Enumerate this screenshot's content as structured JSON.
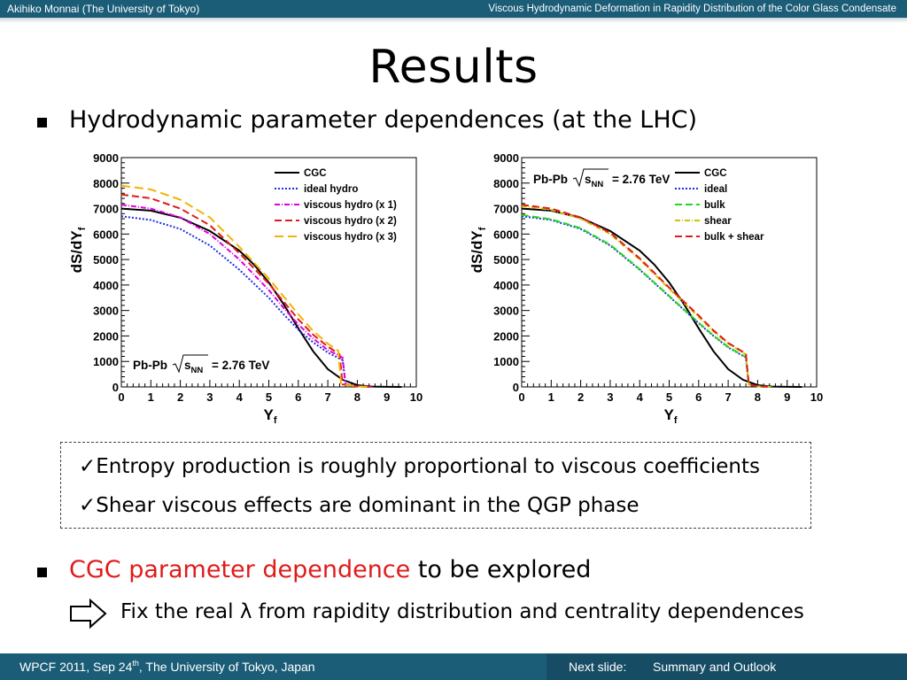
{
  "header": {
    "author": "Akihiko Monnai (The University of Tokyo)",
    "talk_title": "Viscous Hydrodynamic Deformation in Rapidity Distribution of the Color Glass Condensate"
  },
  "slide": {
    "title": "Results",
    "bullet1": "Hydrodynamic parameter dependences (at the LHC)",
    "conclusions": [
      "✓Entropy production is roughly proportional to viscous coefficients",
      "✓Shear viscous effects are dominant in the QGP phase"
    ],
    "bullet2_red": "CGC parameter dependence",
    "bullet2_rest": " to be explored",
    "sub_item": "Fix the real λ from rapidity distribution and centrality dependences"
  },
  "footer": {
    "conference_prefix": "WPCF 2011, Sep 24",
    "conference_sup": "th",
    "conference_suffix": ", The University of Tokyo, Japan",
    "next_label": "Next slide:",
    "next_value": "Summary and Outlook"
  },
  "chart_data": [
    {
      "type": "line",
      "ylabel": "dS/dY",
      "ylabel_sub": "f",
      "xlabel": "Y",
      "xlabel_sub": "f",
      "xlim": [
        0,
        10
      ],
      "ylim": [
        0,
        9000
      ],
      "xticks": [
        "0",
        "1",
        "2",
        "3",
        "4",
        "5",
        "6",
        "7",
        "8",
        "9",
        "10"
      ],
      "yticks": [
        "0",
        "1000",
        "2000",
        "3000",
        "4000",
        "5000",
        "6000",
        "7000",
        "8000",
        "9000"
      ],
      "annotation": {
        "pre": "Pb-Pb",
        "sym": "s",
        "sub": "NN",
        "post": "= 2.76 TeV"
      },
      "annotation_position": "bottom-left",
      "legend_position": "top-right",
      "series": [
        {
          "name": "CGC",
          "color": "#000000",
          "dash": "",
          "points": [
            [
              0,
              7000
            ],
            [
              1,
              6920
            ],
            [
              2,
              6640
            ],
            [
              3,
              6120
            ],
            [
              4,
              5350
            ],
            [
              4.5,
              4800
            ],
            [
              5,
              4100
            ],
            [
              5.5,
              3250
            ],
            [
              6,
              2300
            ],
            [
              6.5,
              1400
            ],
            [
              7,
              700
            ],
            [
              7.5,
              280
            ],
            [
              8,
              70
            ],
            [
              8.5,
              15
            ],
            [
              9,
              5
            ],
            [
              9.5,
              0
            ]
          ]
        },
        {
          "name": "ideal hydro",
          "color": "#1f2de0",
          "dash": "2,2",
          "points": [
            [
              0,
              6700
            ],
            [
              1,
              6550
            ],
            [
              2,
              6200
            ],
            [
              3,
              5550
            ],
            [
              4,
              4600
            ],
            [
              5,
              3500
            ],
            [
              5.5,
              2850
            ],
            [
              6,
              2250
            ],
            [
              6.5,
              1750
            ],
            [
              7,
              1350
            ],
            [
              7.5,
              1050
            ],
            [
              7.55,
              600
            ],
            [
              7.6,
              100
            ],
            [
              8,
              20
            ],
            [
              8.5,
              0
            ]
          ]
        },
        {
          "name": "viscous hydro (x 1)",
          "color": "#e000e0",
          "dash": "6,2,1,2",
          "points": [
            [
              0,
              7150
            ],
            [
              1,
              7000
            ],
            [
              2,
              6650
            ],
            [
              3,
              6000
            ],
            [
              4,
              5000
            ],
            [
              5,
              3800
            ],
            [
              5.5,
              3100
            ],
            [
              6,
              2450
            ],
            [
              6.5,
              1900
            ],
            [
              7,
              1450
            ],
            [
              7.5,
              1150
            ],
            [
              7.55,
              650
            ],
            [
              7.6,
              100
            ],
            [
              8,
              20
            ],
            [
              8.5,
              0
            ]
          ]
        },
        {
          "name": "viscous hydro (x 2)",
          "color": "#e01b1b",
          "dash": "8,4",
          "points": [
            [
              0,
              7550
            ],
            [
              1,
              7400
            ],
            [
              2,
              7000
            ],
            [
              3,
              6350
            ],
            [
              4,
              5250
            ],
            [
              5,
              4050
            ],
            [
              5.5,
              3350
            ],
            [
              6,
              2650
            ],
            [
              6.5,
              2050
            ],
            [
              7,
              1580
            ],
            [
              7.4,
              1280
            ],
            [
              7.45,
              700
            ],
            [
              7.5,
              100
            ],
            [
              8,
              20
            ],
            [
              8.5,
              0
            ]
          ]
        },
        {
          "name": "viscous hydro (x 3)",
          "color": "#f0b400",
          "dash": "10,5",
          "points": [
            [
              0,
              7900
            ],
            [
              1,
              7750
            ],
            [
              2,
              7350
            ],
            [
              3,
              6650
            ],
            [
              4,
              5500
            ],
            [
              5,
              4250
            ],
            [
              5.5,
              3550
            ],
            [
              6,
              2850
            ],
            [
              6.5,
              2200
            ],
            [
              7,
              1700
            ],
            [
              7.35,
              1420
            ],
            [
              7.4,
              800
            ],
            [
              7.45,
              100
            ],
            [
              8,
              20
            ],
            [
              8.5,
              0
            ]
          ]
        }
      ]
    },
    {
      "type": "line",
      "ylabel": "dS/dY",
      "ylabel_sub": "f",
      "xlabel": "Y",
      "xlabel_sub": "f",
      "xlim": [
        0,
        10
      ],
      "ylim": [
        0,
        9000
      ],
      "xticks": [
        "0",
        "1",
        "2",
        "3",
        "4",
        "5",
        "6",
        "7",
        "8",
        "9",
        "10"
      ],
      "yticks": [
        "0",
        "1000",
        "2000",
        "3000",
        "4000",
        "5000",
        "6000",
        "7000",
        "8000",
        "9000"
      ],
      "annotation": {
        "pre": "Pb-Pb",
        "sym": "s",
        "sub": "NN",
        "post": "= 2.76 TeV"
      },
      "annotation_position": "top-left",
      "legend_position": "top-right",
      "series": [
        {
          "name": "CGC",
          "color": "#000000",
          "dash": "",
          "points": [
            [
              0,
              7000
            ],
            [
              1,
              6920
            ],
            [
              2,
              6640
            ],
            [
              3,
              6120
            ],
            [
              4,
              5350
            ],
            [
              4.5,
              4800
            ],
            [
              5,
              4100
            ],
            [
              5.5,
              3250
            ],
            [
              6,
              2300
            ],
            [
              6.5,
              1400
            ],
            [
              7,
              700
            ],
            [
              7.5,
              280
            ],
            [
              8,
              70
            ],
            [
              8.5,
              15
            ],
            [
              9,
              5
            ],
            [
              9.5,
              0
            ]
          ]
        },
        {
          "name": "ideal",
          "color": "#1f2de0",
          "dash": "2,2",
          "points": [
            [
              0,
              6700
            ],
            [
              1,
              6550
            ],
            [
              2,
              6200
            ],
            [
              3,
              5550
            ],
            [
              4,
              4600
            ],
            [
              5,
              3550
            ],
            [
              6,
              2500
            ],
            [
              6.5,
              2000
            ],
            [
              7,
              1550
            ],
            [
              7.6,
              1150
            ],
            [
              7.65,
              600
            ],
            [
              7.7,
              100
            ],
            [
              8,
              20
            ],
            [
              8.5,
              0
            ]
          ]
        },
        {
          "name": "bulk",
          "color": "#22d622",
          "dash": "8,4",
          "points": [
            [
              0,
              6750
            ],
            [
              1,
              6580
            ],
            [
              2,
              6230
            ],
            [
              3,
              5580
            ],
            [
              4,
              4620
            ],
            [
              5,
              3570
            ],
            [
              6,
              2520
            ],
            [
              6.5,
              2020
            ],
            [
              7,
              1570
            ],
            [
              7.6,
              1170
            ],
            [
              7.65,
              620
            ],
            [
              7.7,
              100
            ],
            [
              8,
              20
            ],
            [
              8.5,
              0
            ]
          ]
        },
        {
          "name": "shear",
          "color": "#d6c200",
          "dash": "6,2,1,2",
          "points": [
            [
              0,
              7100
            ],
            [
              1,
              6950
            ],
            [
              2,
              6600
            ],
            [
              3,
              6000
            ],
            [
              4,
              5000
            ],
            [
              5,
              3850
            ],
            [
              6,
              2750
            ],
            [
              6.5,
              2180
            ],
            [
              7,
              1700
            ],
            [
              7.6,
              1280
            ],
            [
              7.65,
              700
            ],
            [
              7.7,
              100
            ],
            [
              8,
              20
            ],
            [
              8.5,
              0
            ]
          ]
        },
        {
          "name": "bulk + shear",
          "color": "#e01b1b",
          "dash": "8,4",
          "points": [
            [
              0,
              7150
            ],
            [
              1,
              7000
            ],
            [
              2,
              6650
            ],
            [
              3,
              6050
            ],
            [
              4,
              5050
            ],
            [
              5,
              3900
            ],
            [
              6,
              2800
            ],
            [
              6.5,
              2220
            ],
            [
              7,
              1730
            ],
            [
              7.6,
              1300
            ],
            [
              7.65,
              720
            ],
            [
              7.7,
              100
            ],
            [
              8,
              20
            ],
            [
              8.5,
              0
            ]
          ]
        }
      ]
    }
  ]
}
